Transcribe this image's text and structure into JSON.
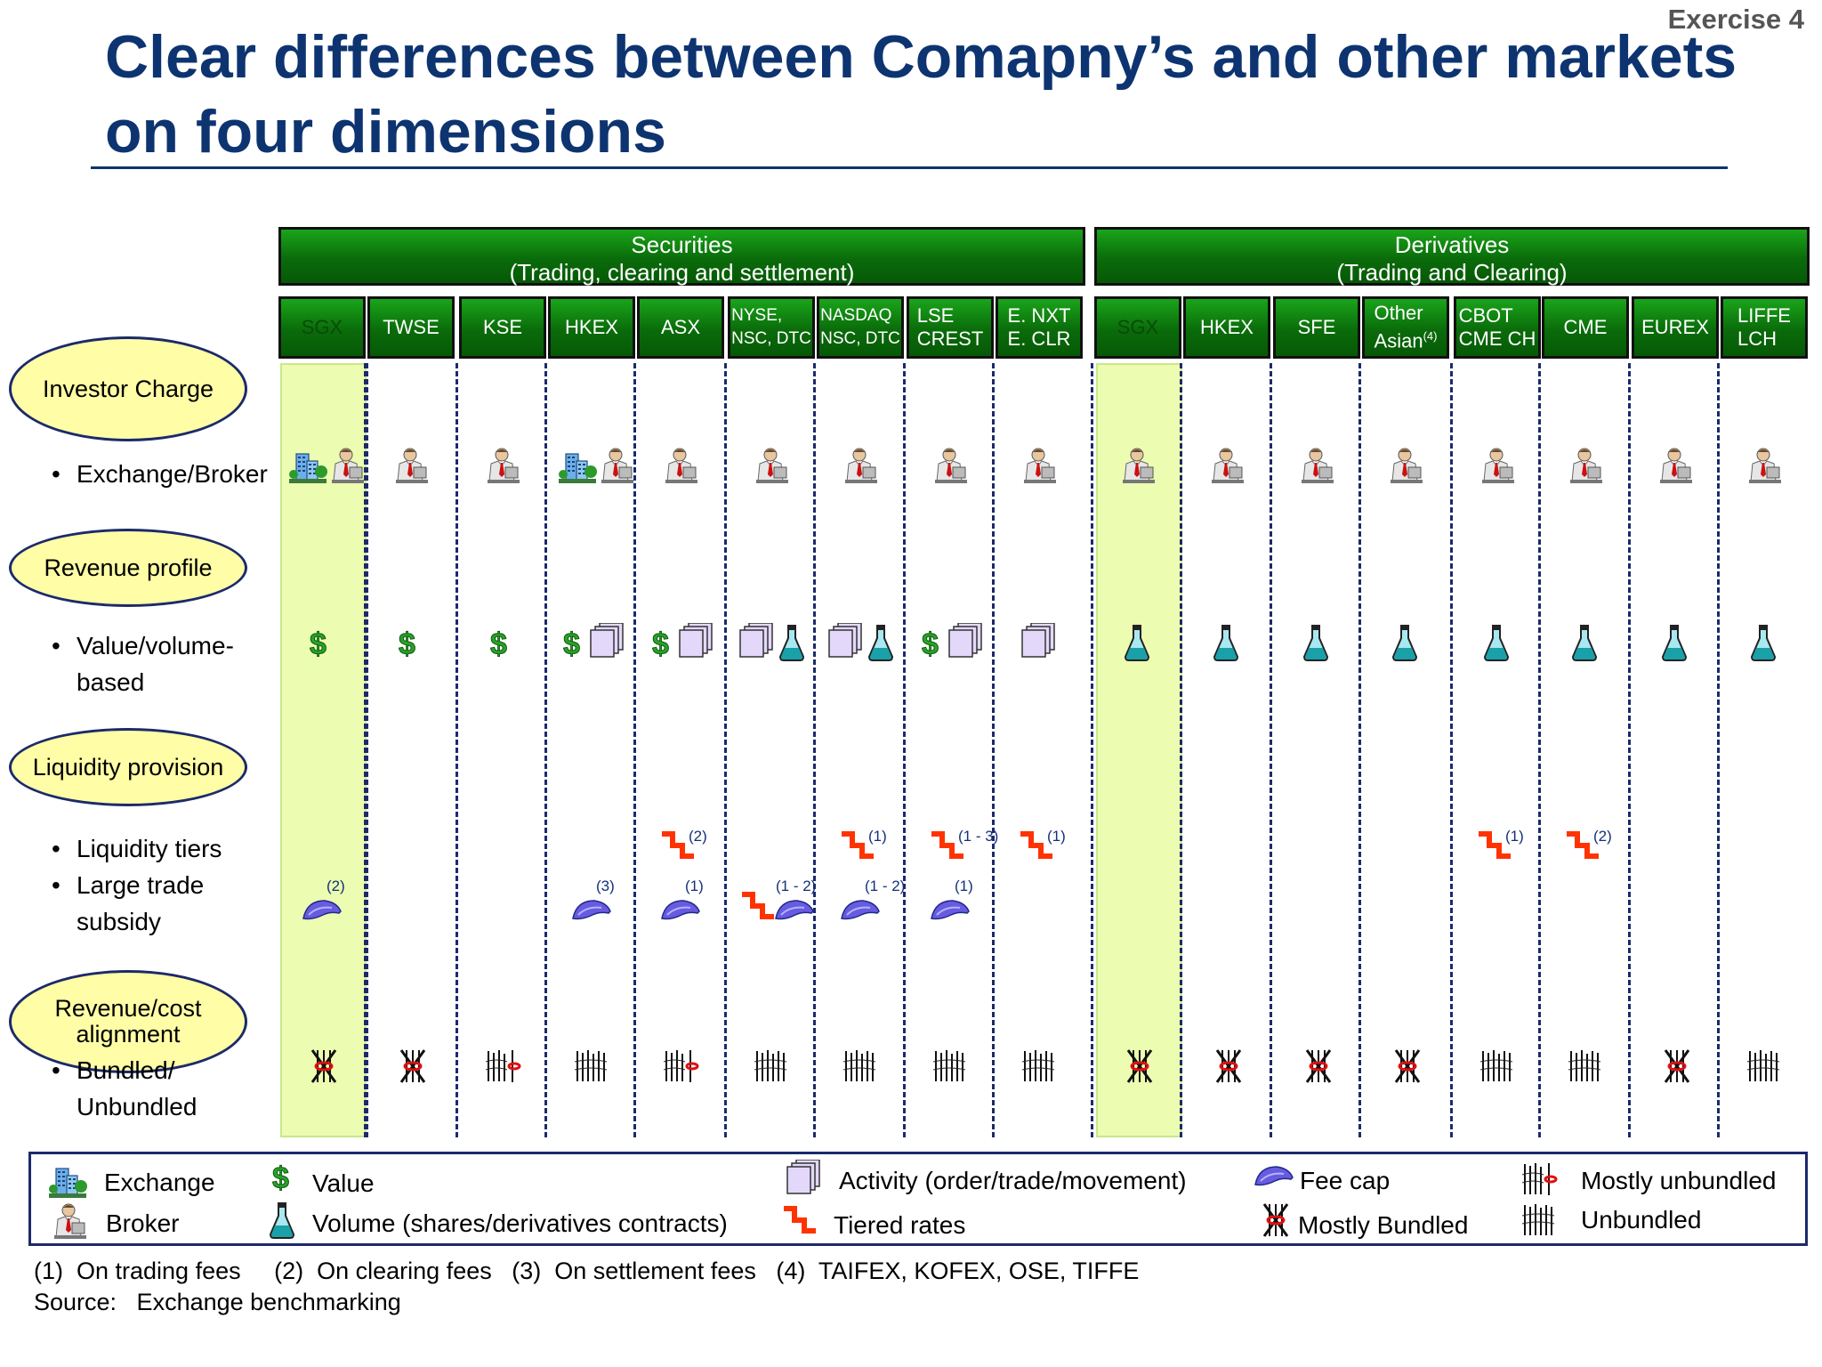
{
  "exercise_label": "Exercise 4",
  "title_line1": "Clear differences between Comapny’s and other markets",
  "title_line2": "on four dimensions",
  "groups": {
    "securities": {
      "line1": "Securities",
      "line2": "(Trading, clearing and settlement)"
    },
    "derivatives": {
      "line1": "Derivatives",
      "line2": "(Trading and Clearing)"
    }
  },
  "columns": [
    {
      "line1": "SGX",
      "line2": ""
    },
    {
      "line1": "TWSE",
      "line2": ""
    },
    {
      "line1": "KSE",
      "line2": ""
    },
    {
      "line1": "HKEX",
      "line2": ""
    },
    {
      "line1": "ASX",
      "line2": ""
    },
    {
      "line1": "NYSE,",
      "line2": "NSC, DTC"
    },
    {
      "line1": "NASDAQ",
      "line2": "NSC, DTC"
    },
    {
      "line1": "LSE",
      "line2": "CREST"
    },
    {
      "line1": "E. NXT",
      "line2": "E. CLR"
    },
    {
      "line1": "SGX",
      "line2": ""
    },
    {
      "line1": "HKEX",
      "line2": ""
    },
    {
      "line1": "SFE",
      "line2": ""
    },
    {
      "line1": "Other",
      "line2": "Asian",
      "sup": "(4)"
    },
    {
      "line1": "CBOT",
      "line2": "CME CH"
    },
    {
      "line1": "CME",
      "line2": ""
    },
    {
      "line1": "EUREX",
      "line2": ""
    },
    {
      "line1": "LIFFE",
      "line2": "LCH"
    }
  ],
  "categories": {
    "investor_charge": "Investor Charge",
    "revenue_profile": "Revenue profile",
    "liquidity_provision": "Liquidity provision",
    "alignment_line1": "Revenue/cost",
    "alignment_line2": "alignment"
  },
  "bullets": {
    "exchange_broker": "Exchange/Broker",
    "value_volume_1": "Value/volume-",
    "value_volume_2": "based",
    "liquidity_tiers": "Liquidity tiers",
    "large_trade_1": "Large trade",
    "large_trade_2": "subsidy",
    "bundled_1": "Bundled/",
    "bundled_2": "Unbundled"
  },
  "cells": {
    "investor": [
      "exchange+broker",
      "broker",
      "broker",
      "exchange+broker",
      "broker",
      "broker",
      "broker",
      "broker",
      "broker",
      "broker",
      "broker",
      "broker",
      "broker",
      "broker",
      "broker",
      "broker",
      "broker"
    ],
    "revenue": [
      "value",
      "value",
      "value",
      "value+activity",
      "value+activity",
      "activity+volume",
      "activity+volume",
      "value+activity",
      "activity",
      "volume",
      "volume",
      "volume",
      "volume",
      "volume",
      "volume",
      "volume",
      "volume"
    ],
    "tiers": [
      "",
      "",
      "",
      "",
      "(2)",
      "",
      "(1)",
      "(1 - 3)",
      "(1)",
      "",
      "",
      "",
      "",
      "(1)",
      "(2)",
      "",
      ""
    ],
    "feecap": [
      "(2)",
      "",
      "",
      "(3)",
      "(1)",
      "(1 - 2)",
      "(1 - 2)",
      "(1)",
      "",
      "",
      "",
      "",
      "",
      "",
      "",
      "",
      ""
    ],
    "extra_tier": [
      "",
      "",
      "",
      "",
      "",
      "yes",
      "",
      "",
      "",
      "",
      "",
      "",
      "",
      "",
      "",
      "",
      ""
    ],
    "bundling": [
      "bundled",
      "bundled",
      "mostly-unbundled",
      "unbundled",
      "mostly-unbundled",
      "unbundled",
      "unbundled",
      "unbundled",
      "unbundled",
      "bundled",
      "bundled",
      "bundled",
      "bundled",
      "unbundled",
      "unbundled",
      "bundled",
      "unbundled"
    ]
  },
  "legend": {
    "exchange": "Exchange",
    "broker": "Broker",
    "value": "Value",
    "volume": "Volume (shares/derivatives contracts)",
    "activity": "Activity (order/trade/movement)",
    "tiered": "Tiered rates",
    "feecap": "Fee cap",
    "bundled": "Mostly Bundled",
    "mostly_unbundled": "Mostly unbundled",
    "unbundled": "Unbundled"
  },
  "footnotes": "(1)  On trading fees     (2)  On clearing fees   (3)  On settlement fees   (4)  TAIFEX, KOFEX, OSE, TIFFE",
  "source": "Source:   Exchange benchmarking",
  "colors": {
    "title": "#0d3470",
    "header_green": "#0a6b0a",
    "highlight": "#ecfcb0",
    "category_fill": "#fffea6",
    "tier_red": "#ff3300",
    "cap_blue": "#5a4ad0"
  }
}
